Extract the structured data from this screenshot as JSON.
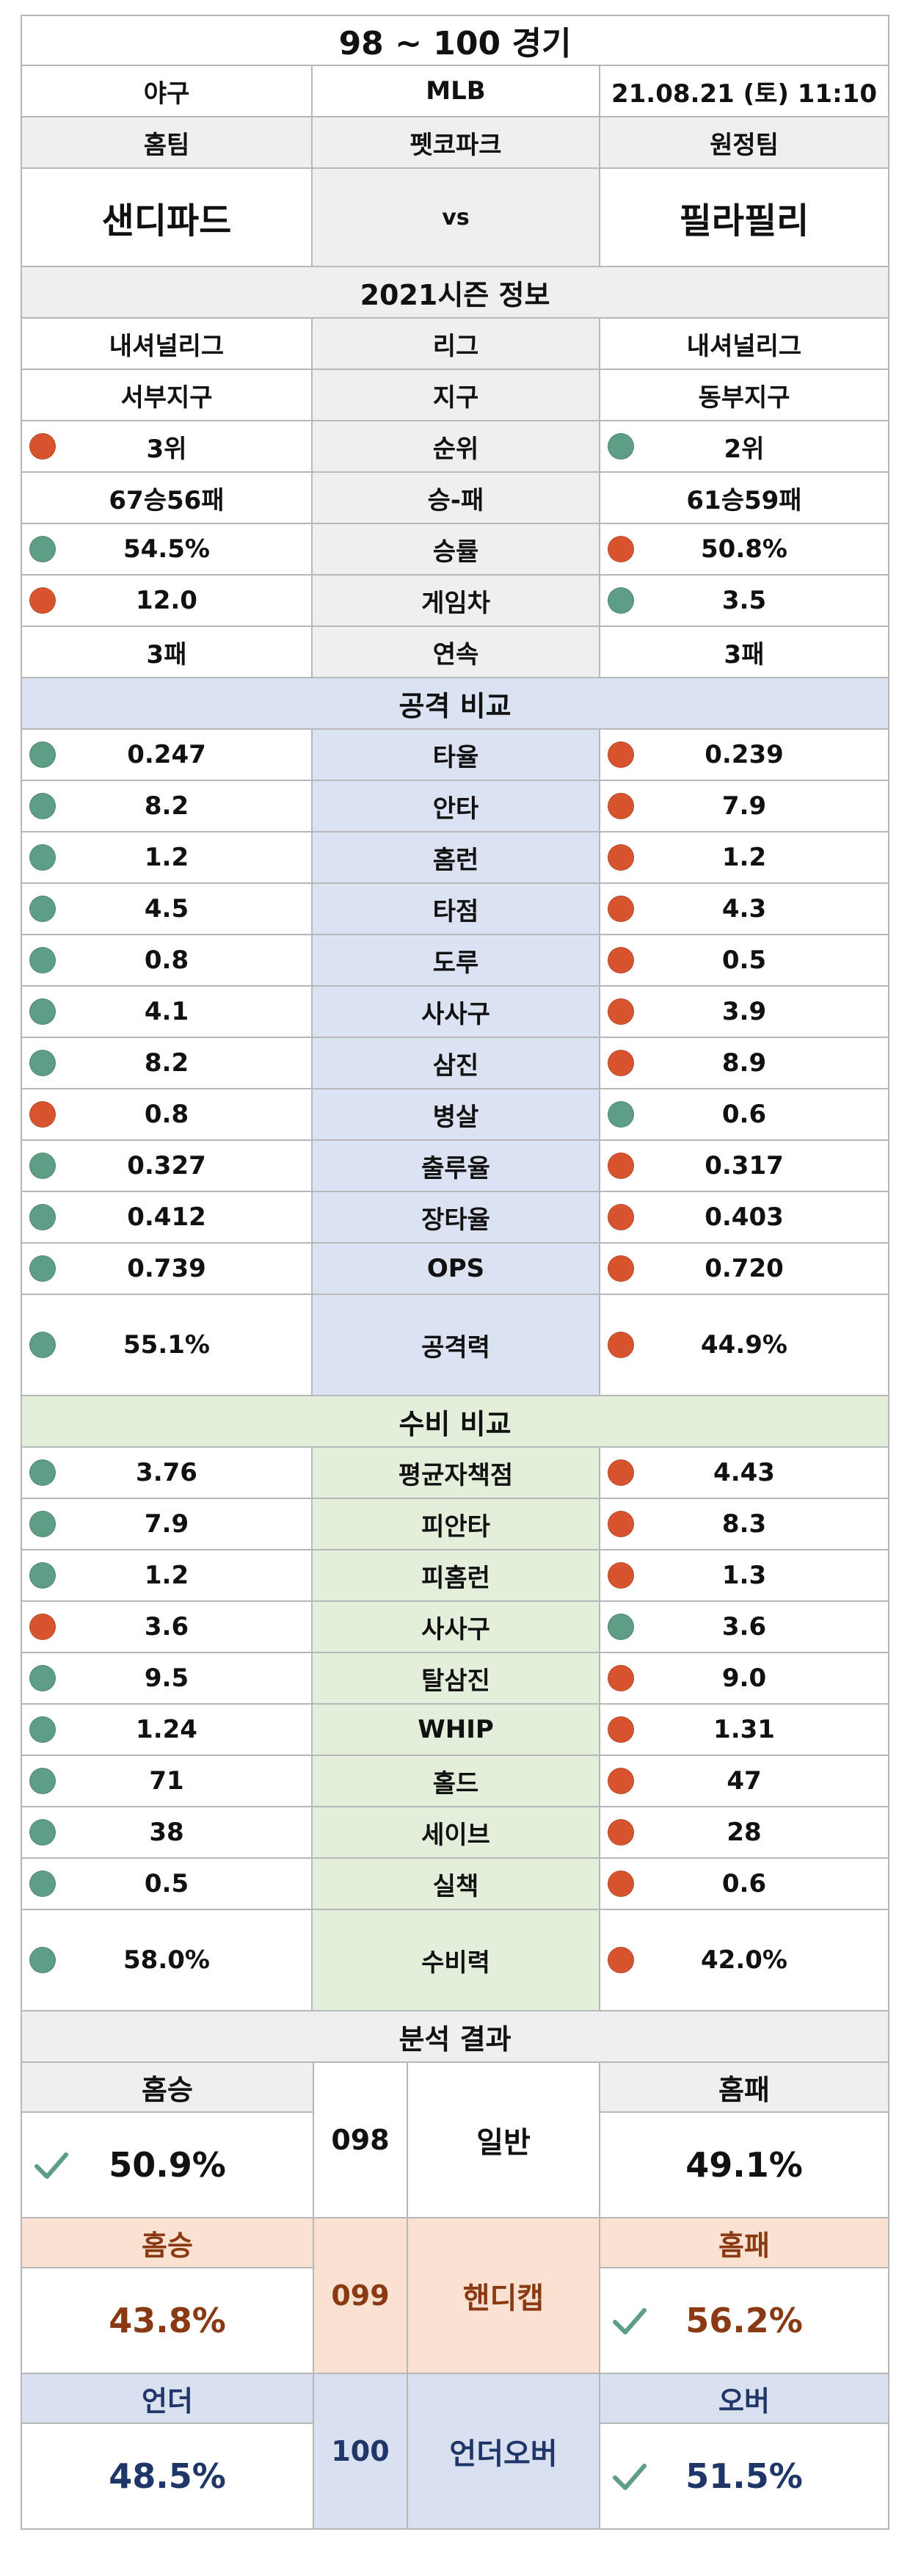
{
  "header": {
    "title": "98 ~ 100 경기",
    "sport": "야구",
    "league": "MLB",
    "datetime": "21.08.21 (토) 11:10"
  },
  "teams": {
    "home_label": "홈팀",
    "venue": "펫코파크",
    "away_label": "원정팀",
    "home": "샌디파드",
    "vs": "vs",
    "away": "필라필리"
  },
  "season": {
    "title": "2021시즌 정보",
    "rows": [
      {
        "home": "내셔널리그",
        "label": "리그",
        "away": "내셔널리그",
        "hd": "",
        "ad": ""
      },
      {
        "home": "서부지구",
        "label": "지구",
        "away": "동부지구",
        "hd": "",
        "ad": ""
      },
      {
        "home": "3위",
        "label": "순위",
        "away": "2위",
        "hd": "red",
        "ad": "green"
      },
      {
        "home": "67승56패",
        "label": "승-패",
        "away": "61승59패",
        "hd": "",
        "ad": ""
      },
      {
        "home": "54.5%",
        "label": "승률",
        "away": "50.8%",
        "hd": "green",
        "ad": "red"
      },
      {
        "home": "12.0",
        "label": "게임차",
        "away": "3.5",
        "hd": "red",
        "ad": "green"
      },
      {
        "home": "3패",
        "label": "연속",
        "away": "3패",
        "hd": "",
        "ad": ""
      }
    ]
  },
  "offense": {
    "title": "공격 비교",
    "rows": [
      {
        "home": "0.247",
        "label": "타율",
        "away": "0.239",
        "hd": "green",
        "ad": "red"
      },
      {
        "home": "8.2",
        "label": "안타",
        "away": "7.9",
        "hd": "green",
        "ad": "red"
      },
      {
        "home": "1.2",
        "label": "홈런",
        "away": "1.2",
        "hd": "green",
        "ad": "red"
      },
      {
        "home": "4.5",
        "label": "타점",
        "away": "4.3",
        "hd": "green",
        "ad": "red"
      },
      {
        "home": "0.8",
        "label": "도루",
        "away": "0.5",
        "hd": "green",
        "ad": "red"
      },
      {
        "home": "4.1",
        "label": "사사구",
        "away": "3.9",
        "hd": "green",
        "ad": "red"
      },
      {
        "home": "8.2",
        "label": "삼진",
        "away": "8.9",
        "hd": "green",
        "ad": "red"
      },
      {
        "home": "0.8",
        "label": "병살",
        "away": "0.6",
        "hd": "red",
        "ad": "green"
      },
      {
        "home": "0.327",
        "label": "출루율",
        "away": "0.317",
        "hd": "green",
        "ad": "red"
      },
      {
        "home": "0.412",
        "label": "장타율",
        "away": "0.403",
        "hd": "green",
        "ad": "red"
      },
      {
        "home": "0.739",
        "label": "OPS",
        "away": "0.720",
        "hd": "green",
        "ad": "red"
      }
    ],
    "total": {
      "home": "55.1%",
      "label": "공격력",
      "away": "44.9%",
      "hd": "green",
      "ad": "red"
    }
  },
  "defense": {
    "title": "수비 비교",
    "rows": [
      {
        "home": "3.76",
        "label": "평균자책점",
        "away": "4.43",
        "hd": "green",
        "ad": "red"
      },
      {
        "home": "7.9",
        "label": "피안타",
        "away": "8.3",
        "hd": "green",
        "ad": "red"
      },
      {
        "home": "1.2",
        "label": "피홈런",
        "away": "1.3",
        "hd": "green",
        "ad": "red"
      },
      {
        "home": "3.6",
        "label": "사사구",
        "away": "3.6",
        "hd": "red",
        "ad": "green"
      },
      {
        "home": "9.5",
        "label": "탈삼진",
        "away": "9.0",
        "hd": "green",
        "ad": "red"
      },
      {
        "home": "1.24",
        "label": "WHIP",
        "away": "1.31",
        "hd": "green",
        "ad": "red"
      },
      {
        "home": "71",
        "label": "홀드",
        "away": "47",
        "hd": "green",
        "ad": "red"
      },
      {
        "home": "38",
        "label": "세이브",
        "away": "28",
        "hd": "green",
        "ad": "red"
      },
      {
        "home": "0.5",
        "label": "실책",
        "away": "0.6",
        "hd": "green",
        "ad": "red"
      }
    ],
    "total": {
      "home": "58.0%",
      "label": "수비력",
      "away": "42.0%",
      "hd": "green",
      "ad": "red"
    }
  },
  "analysis": {
    "title": "분석 결과",
    "blocks": [
      {
        "left_label": "홈승",
        "left_value": "50.9%",
        "code": "098",
        "name": "일반",
        "right_label": "홈패",
        "right_value": "49.1%",
        "check": "left",
        "theme": "gray"
      },
      {
        "left_label": "홈승",
        "left_value": "43.8%",
        "code": "099",
        "name": "핸디캡",
        "right_label": "홈패",
        "right_value": "56.2%",
        "check": "right",
        "theme": "peach"
      },
      {
        "left_label": "언더",
        "left_value": "48.5%",
        "code": "100",
        "name": "언더오버",
        "right_label": "오버",
        "right_value": "51.5%",
        "check": "right",
        "theme": "lblue"
      }
    ]
  },
  "colors": {
    "good": "#5e9e85",
    "bad": "#d8542e",
    "check": "#5e9e85",
    "handicap_text": "#8a3a12",
    "ou_text": "#1f3668"
  }
}
